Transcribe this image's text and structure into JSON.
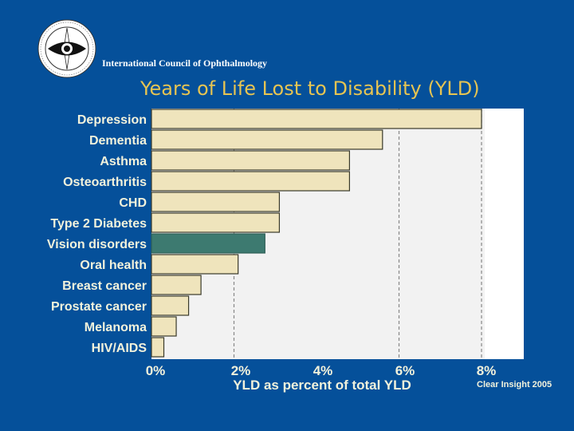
{
  "header": {
    "organization": "International Council of Ophthalmology",
    "logo": "ico-seal-eye-icon"
  },
  "colors": {
    "background": "#05509a",
    "title": "#e6c452",
    "bar_default": "#efe4bc",
    "bar_highlight": "#3d7a70",
    "plot_bg": "#f2f2f2",
    "text": "#f2f2dc"
  },
  "chart_data": {
    "type": "bar",
    "orientation": "horizontal",
    "title": "Years of Life Lost to Disability (YLD)",
    "xlabel": "YLD as percent of total YLD",
    "ylabel": "",
    "categories": [
      "Depression",
      "Dementia",
      "Asthma",
      "Osteoarthritis",
      "CHD",
      "Type 2 Diabetes",
      "Vision disorders",
      "Oral health",
      "Breast cancer",
      "Prostate cancer",
      "Melanoma",
      "HIV/AIDS"
    ],
    "values": [
      8.0,
      5.6,
      4.8,
      4.8,
      3.1,
      3.1,
      2.75,
      2.1,
      1.2,
      0.9,
      0.6,
      0.3
    ],
    "highlight": "Vision disorders",
    "xlim": [
      0,
      9
    ],
    "xticks": [
      0,
      2,
      4,
      6,
      8
    ],
    "xtick_labels": [
      "0%",
      "2%",
      "4%",
      "6%",
      "8%"
    ],
    "gridlines": [
      2,
      6,
      8
    ],
    "grid": true,
    "legend": "none",
    "annotation": "Clear Insight 2005"
  }
}
